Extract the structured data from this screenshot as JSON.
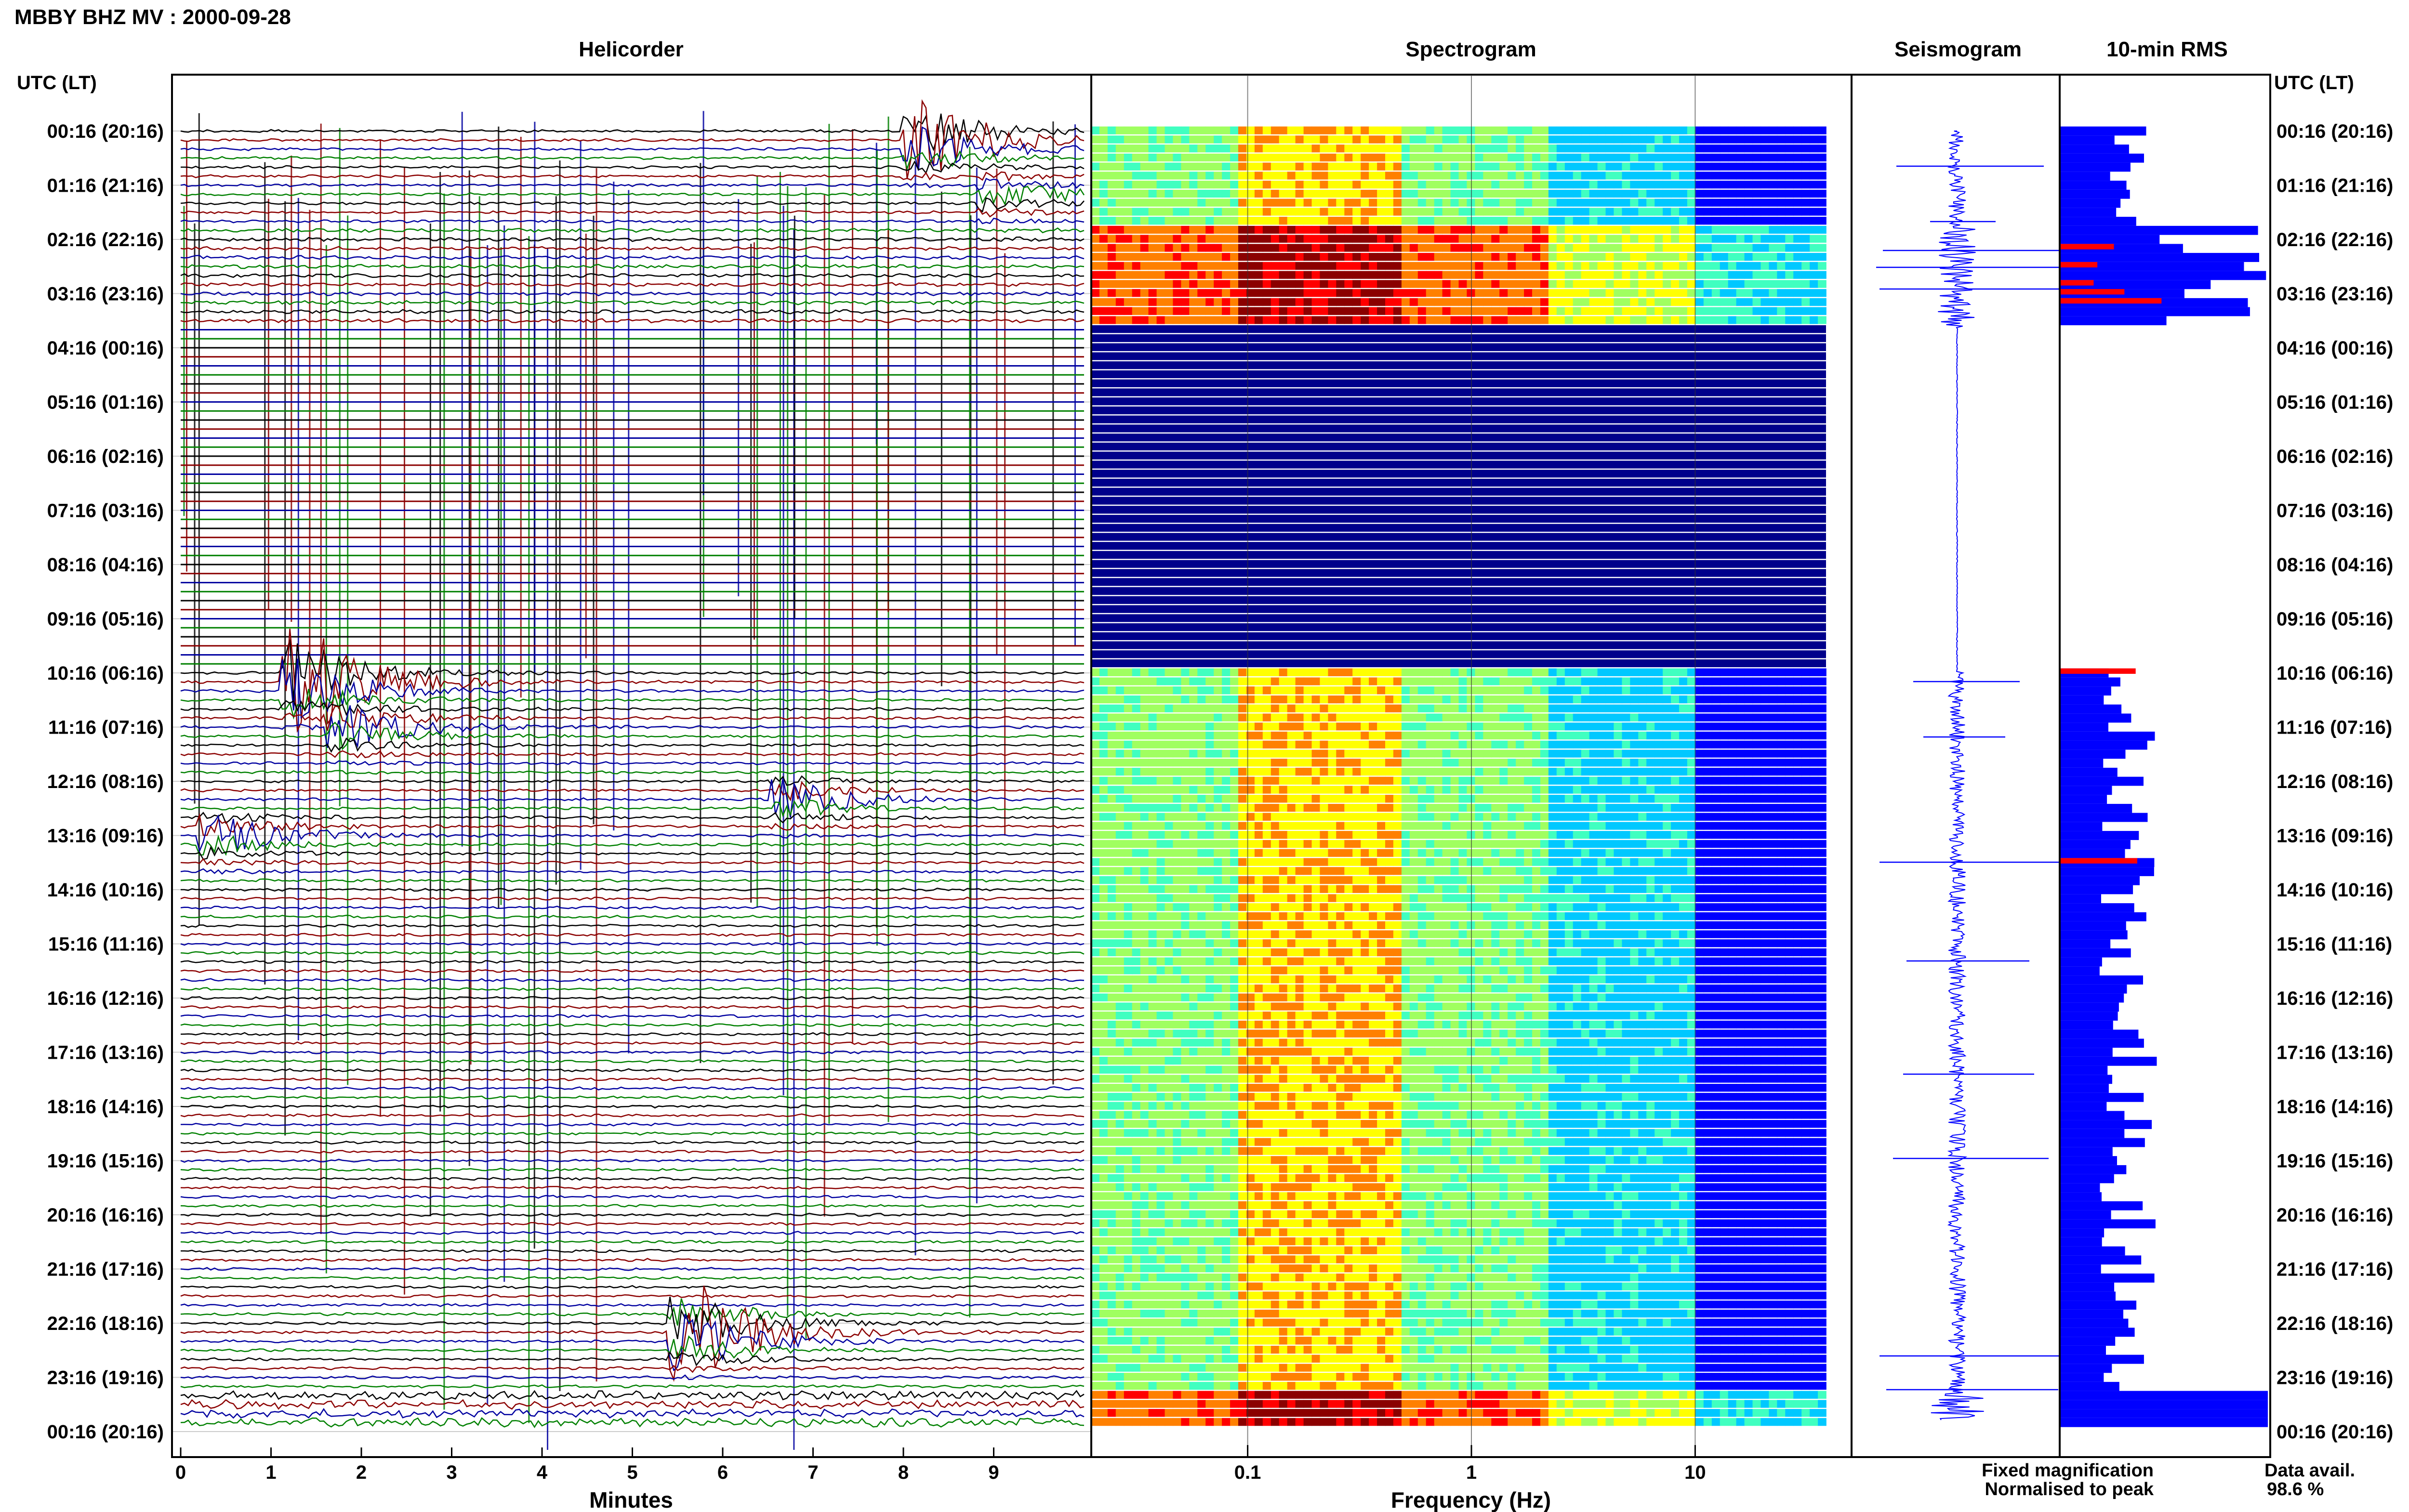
{
  "page": {
    "title": "MBBY BHZ MV : 2000-09-28",
    "left_axis_label": "UTC (LT)",
    "right_axis_label": "UTC (LT)"
  },
  "panels": {
    "helicorder": "Helicorder",
    "spectrogram": "Spectrogram",
    "seismogram": "Seismogram",
    "rms": "10-min RMS"
  },
  "time_labels": [
    "00:16 (20:16)",
    "01:16 (21:16)",
    "02:16 (22:16)",
    "03:16 (23:16)",
    "04:16 (00:16)",
    "05:16 (01:16)",
    "06:16 (02:16)",
    "07:16 (03:16)",
    "08:16 (04:16)",
    "09:16 (05:16)",
    "10:16 (06:16)",
    "11:16 (07:16)",
    "12:16 (08:16)",
    "13:16 (09:16)",
    "14:16 (10:16)",
    "15:16 (11:16)",
    "16:16 (12:16)",
    "17:16 (13:16)",
    "18:16 (14:16)",
    "19:16 (15:16)",
    "20:16 (16:16)",
    "21:16 (17:16)",
    "22:16 (18:16)",
    "23:16 (19:16)",
    "00:16 (20:16)"
  ],
  "helicorder_axis": {
    "label": "Minutes",
    "ticks": [
      "0",
      "1",
      "2",
      "3",
      "4",
      "5",
      "6",
      "7",
      "8",
      "9"
    ]
  },
  "spectrogram_axis": {
    "label": "Frequency (Hz)",
    "ticks": [
      "0.1",
      "1",
      "10"
    ]
  },
  "legend": {
    "fixed": "Fixed magnification",
    "normalised": "Normalised to peak",
    "fixed_color": "#0000ff",
    "normalised_color": "#ff0000"
  },
  "data_avail": {
    "label": "Data avail.",
    "value": "98.6 %"
  },
  "colors": {
    "trace_cycle": [
      "#000000",
      "#8b0000",
      "#0000a0",
      "#008000"
    ],
    "spectrogram_cmap": [
      "#00008b",
      "#0000ff",
      "#0080ff",
      "#00c8ff",
      "#40ffc0",
      "#a0ff60",
      "#ffff00",
      "#ff8000",
      "#ff0000",
      "#8b0000"
    ],
    "rms_fixed": "#0000ff",
    "rms_normalised": "#ff0000"
  },
  "chart_data": [
    {
      "type": "line",
      "title": "Helicorder",
      "xlabel": "Minutes",
      "xlim": [
        0,
        10
      ],
      "rows_per_hour": 6,
      "hours": 24,
      "events": [
        {
          "hour": 0.15,
          "minute": 8.2,
          "amplitude": 3.5,
          "color": "green"
        },
        {
          "hour": 1.2,
          "minute": 9.0,
          "amplitude": 1.2,
          "color": "blue"
        },
        {
          "hour": 10.1,
          "minute": 1.3,
          "amplitude": 5.0,
          "color": "red"
        },
        {
          "hour": 11.0,
          "minute": 1.8,
          "amplitude": 2.0,
          "color": "green"
        },
        {
          "hour": 12.3,
          "minute": 6.7,
          "amplitude": 1.5,
          "color": "blue"
        },
        {
          "hour": 13.0,
          "minute": 0.4,
          "amplitude": 1.6,
          "color": "green"
        },
        {
          "hour": 22.1,
          "minute": 5.6,
          "amplitude": 4.5,
          "color": "green"
        }
      ],
      "data_gap_hours": [
        3.6,
        10.0
      ]
    },
    {
      "type": "heatmap",
      "title": "Spectrogram",
      "xlabel": "Frequency (Hz)",
      "xscale": "log",
      "xlim": [
        0.02,
        50
      ],
      "xticks": [
        0.1,
        1,
        10
      ]
    },
    {
      "type": "bar",
      "title": "10-min RMS",
      "orientation": "horizontal",
      "series": [
        {
          "name": "Fixed magnification",
          "color": "#0000ff"
        },
        {
          "name": "Normalised to peak",
          "color": "#ff0000"
        }
      ],
      "data_avail_percent": 98.6
    }
  ]
}
